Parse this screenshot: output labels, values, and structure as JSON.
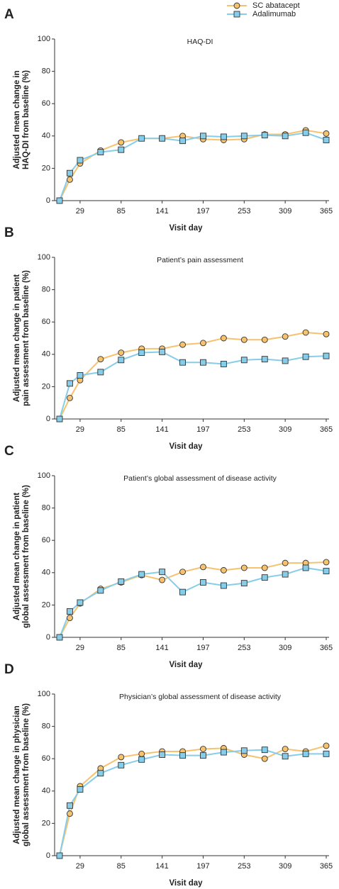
{
  "chart_data": [
    {
      "type": "line",
      "panel": "A",
      "title": "HAQ-DI",
      "ylabel": [
        "Adjusted mean change in",
        "HAQ-DI from baseline (%)"
      ],
      "xlabel": "Visit day",
      "x": [
        1,
        15,
        29,
        57,
        85,
        113,
        141,
        169,
        197,
        225,
        253,
        281,
        309,
        337,
        365
      ],
      "xlim": [
        1,
        365
      ],
      "xticks": [
        29,
        85,
        141,
        197,
        253,
        309,
        365
      ],
      "ylim": [
        0,
        100
      ],
      "yticks": [
        0,
        20,
        40,
        60,
        80,
        100
      ],
      "series": [
        {
          "name": "SC abatacept",
          "color": "#f6c26e",
          "marker": "circle",
          "values": [
            0,
            13,
            23,
            31,
            36,
            38.5,
            38.5,
            40,
            38,
            37.5,
            38,
            41,
            41,
            43.5,
            41.5
          ]
        },
        {
          "name": "Adalimumab",
          "color": "#86cdea",
          "marker": "square",
          "values": [
            0,
            17,
            25,
            30,
            31.5,
            38.5,
            38.5,
            37,
            40,
            39.5,
            40,
            40.5,
            40,
            42,
            37.5
          ]
        }
      ]
    },
    {
      "type": "line",
      "panel": "B",
      "title": "Patient’s pain assessment",
      "ylabel": [
        "Adjusted mean change in patient",
        "pain assessment from baseline (%)"
      ],
      "xlabel": "Visit day",
      "x": [
        1,
        15,
        29,
        57,
        85,
        113,
        141,
        169,
        197,
        225,
        253,
        281,
        309,
        337,
        365
      ],
      "xlim": [
        1,
        365
      ],
      "xticks": [
        29,
        85,
        141,
        197,
        253,
        309,
        365
      ],
      "ylim": [
        0,
        100
      ],
      "yticks": [
        0,
        20,
        40,
        60,
        80,
        100
      ],
      "series": [
        {
          "color": "#f6c26e",
          "marker": "circle",
          "values": [
            0,
            13,
            24,
            37,
            41,
            43.5,
            43.5,
            46,
            47,
            50,
            49,
            49,
            51,
            53.5,
            52.5
          ]
        },
        {
          "color": "#86cdea",
          "marker": "square",
          "values": [
            0,
            22,
            27,
            29,
            36.5,
            41,
            41.5,
            35,
            35,
            34,
            36.5,
            37,
            36,
            38.5,
            39
          ]
        }
      ]
    },
    {
      "type": "line",
      "panel": "C",
      "title": "Patient’s global assessment of disease activity",
      "ylabel": [
        "Adjusted mean change in patient",
        "global assessment from baseline (%)"
      ],
      "xlabel": "Visit day",
      "x": [
        1,
        15,
        29,
        57,
        85,
        113,
        141,
        169,
        197,
        225,
        253,
        281,
        309,
        337,
        365
      ],
      "xlim": [
        1,
        365
      ],
      "xticks": [
        29,
        85,
        141,
        197,
        253,
        309,
        365
      ],
      "ylim": [
        0,
        100
      ],
      "yticks": [
        0,
        20,
        40,
        60,
        80,
        100
      ],
      "series": [
        {
          "color": "#f6c26e",
          "marker": "circle",
          "values": [
            0,
            12,
            21,
            30,
            34,
            38.5,
            35.5,
            40.5,
            43.5,
            41.5,
            43,
            43,
            46,
            46,
            46.5
          ]
        },
        {
          "color": "#86cdea",
          "marker": "square",
          "values": [
            0,
            16,
            21.5,
            29,
            34.5,
            39,
            40.5,
            28,
            34,
            32,
            33.5,
            37,
            39,
            43,
            41
          ]
        }
      ]
    },
    {
      "type": "line",
      "panel": "D",
      "title": "Physician’s global assessment of disease activity",
      "ylabel": [
        "Adjusted mean change in physician",
        "global assessment from baseline (%)"
      ],
      "xlabel": "Visit day",
      "x": [
        1,
        15,
        29,
        57,
        85,
        113,
        141,
        169,
        197,
        225,
        253,
        281,
        309,
        337,
        365
      ],
      "xlim": [
        1,
        365
      ],
      "xticks": [
        29,
        85,
        141,
        197,
        253,
        309,
        365
      ],
      "ylim": [
        0,
        100
      ],
      "yticks": [
        0,
        20,
        40,
        60,
        80,
        100
      ],
      "series": [
        {
          "color": "#f6c26e",
          "marker": "circle",
          "values": [
            0,
            26,
            43,
            54,
            61,
            63,
            64.5,
            64.5,
            66,
            66.5,
            62.5,
            60,
            66,
            64.5,
            68
          ]
        },
        {
          "color": "#86cdea",
          "marker": "square",
          "values": [
            0,
            31,
            41,
            51,
            56,
            59.5,
            62.5,
            62,
            62,
            64,
            65,
            65.5,
            61.5,
            63,
            63
          ]
        }
      ]
    }
  ]
}
